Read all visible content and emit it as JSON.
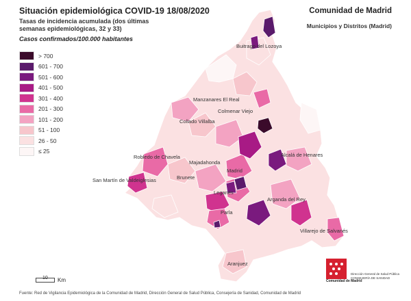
{
  "header": {
    "title": "Situación epidemiológica COVID-19  18/08/2020",
    "subtitle": "Tasas de incidencia acumulada (dos últimas semanas epidemiológicas, 32 y 33)",
    "subtitle2": "Casos confirmados/100.000 habitantes",
    "region": "Comunidad de Madrid",
    "region_sub": "Municipios y Distritos (Madrid)"
  },
  "legend": [
    {
      "label": "> 700",
      "color": "#3b0b2b"
    },
    {
      "label": "601 - 700",
      "color": "#5a1a6b"
    },
    {
      "label": "501 - 600",
      "color": "#7a1a7e"
    },
    {
      "label": "401 - 500",
      "color": "#a81a85"
    },
    {
      "label": "301 - 400",
      "color": "#d0338f"
    },
    {
      "label": "201 - 300",
      "color": "#e96aa6"
    },
    {
      "label": "101 - 200",
      "color": "#f3a3c2"
    },
    {
      "label": "51 - 100",
      "color": "#f7c6cc"
    },
    {
      "label": "26 - 50",
      "color": "#fbe1e2"
    },
    {
      "label": "≤ 25",
      "color": "#fdf6f6"
    }
  ],
  "places": [
    "Buitrago del Lozoya",
    "Manzanares El Real",
    "Colmenar Viejo",
    "Collado Villalba",
    "Robledo de Chavela",
    "Majadahonda",
    "Madrid",
    "Alcalá de Henares",
    "San Martín de Valdeiglesias",
    "Brunete",
    "Leganés",
    "Parla",
    "Arganda del Rey",
    "Villarejo de Salvanés",
    "Aranjuez"
  ],
  "scale": {
    "value": "10",
    "unit": "Km"
  },
  "source": "Fuente: Red de Vigilancia Epidemiológica de la Comunidad de Madrid, Dirección General de Salud Pública, Consejería de Sanidad, Comunidad de Madrid",
  "logo_text": "Comunidad de Madrid",
  "org": [
    "Dirección General de Salud Pública",
    "CONSEJERÍA DE SANIDAD"
  ]
}
